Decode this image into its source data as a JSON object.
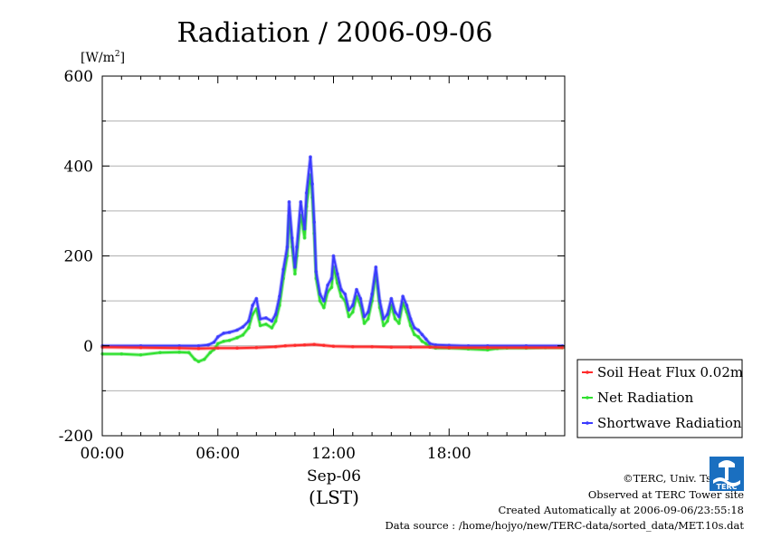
{
  "chart_data": {
    "type": "line",
    "title": "Radiation / 2006-09-06",
    "ylabel_unit_prefix": "[W/m",
    "ylabel_unit_sup": "2",
    "ylabel_unit_suffix": "]",
    "xlabel_date": "Sep-06",
    "xlabel_zone": "(LST)",
    "ylim": [
      -200,
      600
    ],
    "xlim": [
      0,
      24
    ],
    "y_ticks": [
      -200,
      0,
      200,
      400,
      600
    ],
    "y_tick_labels": [
      "-200",
      "0",
      "200",
      "400",
      "600"
    ],
    "x_ticks": [
      0,
      6,
      12,
      18
    ],
    "x_tick_labels": [
      "00:00",
      "06:00",
      "12:00",
      "18:00"
    ],
    "grid": true,
    "legend_position": "right-bottom",
    "series": [
      {
        "name": "Soil Heat Flux 0.02m",
        "color": "#ff2a2a",
        "points": [
          [
            0,
            -3
          ],
          [
            2,
            -4
          ],
          [
            4,
            -5
          ],
          [
            5,
            -6
          ],
          [
            6,
            -5
          ],
          [
            7,
            -5
          ],
          [
            8,
            -4
          ],
          [
            9,
            -2
          ],
          [
            9.5,
            0
          ],
          [
            10,
            1
          ],
          [
            10.5,
            2
          ],
          [
            11,
            3
          ],
          [
            11.5,
            1
          ],
          [
            12,
            -1
          ],
          [
            13,
            -2
          ],
          [
            14,
            -2
          ],
          [
            15,
            -3
          ],
          [
            16,
            -3
          ],
          [
            17,
            -3
          ],
          [
            18,
            -4
          ],
          [
            20,
            -4
          ],
          [
            22,
            -4
          ],
          [
            23.9,
            -4
          ]
        ]
      },
      {
        "name": "Net Radiation",
        "color": "#2ee02e",
        "points": [
          [
            0,
            -18
          ],
          [
            1,
            -18
          ],
          [
            2,
            -20
          ],
          [
            3,
            -15
          ],
          [
            4,
            -14
          ],
          [
            4.5,
            -15
          ],
          [
            4.8,
            -30
          ],
          [
            5,
            -35
          ],
          [
            5.3,
            -30
          ],
          [
            5.6,
            -15
          ],
          [
            5.8,
            -8
          ],
          [
            6,
            5
          ],
          [
            6.3,
            10
          ],
          [
            6.6,
            12
          ],
          [
            7,
            18
          ],
          [
            7.3,
            24
          ],
          [
            7.6,
            40
          ],
          [
            7.8,
            70
          ],
          [
            8,
            82
          ],
          [
            8.2,
            45
          ],
          [
            8.5,
            48
          ],
          [
            8.8,
            40
          ],
          [
            9,
            55
          ],
          [
            9.2,
            90
          ],
          [
            9.4,
            150
          ],
          [
            9.6,
            200
          ],
          [
            9.7,
            290
          ],
          [
            9.85,
            220
          ],
          [
            10,
            160
          ],
          [
            10.1,
            200
          ],
          [
            10.3,
            290
          ],
          [
            10.5,
            240
          ],
          [
            10.6,
            310
          ],
          [
            10.8,
            380
          ],
          [
            10.9,
            330
          ],
          [
            11,
            250
          ],
          [
            11.1,
            150
          ],
          [
            11.3,
            100
          ],
          [
            11.5,
            85
          ],
          [
            11.7,
            120
          ],
          [
            11.9,
            130
          ],
          [
            12,
            175
          ],
          [
            12.2,
            140
          ],
          [
            12.4,
            110
          ],
          [
            12.6,
            100
          ],
          [
            12.8,
            65
          ],
          [
            13,
            75
          ],
          [
            13.2,
            110
          ],
          [
            13.4,
            90
          ],
          [
            13.6,
            50
          ],
          [
            13.8,
            60
          ],
          [
            14,
            100
          ],
          [
            14.2,
            160
          ],
          [
            14.4,
            85
          ],
          [
            14.6,
            45
          ],
          [
            14.8,
            55
          ],
          [
            15,
            90
          ],
          [
            15.2,
            60
          ],
          [
            15.4,
            50
          ],
          [
            15.6,
            95
          ],
          [
            15.8,
            75
          ],
          [
            16,
            45
          ],
          [
            16.2,
            25
          ],
          [
            16.4,
            20
          ],
          [
            16.6,
            10
          ],
          [
            16.8,
            5
          ],
          [
            17,
            -2
          ],
          [
            17.3,
            -5
          ],
          [
            18,
            -5
          ],
          [
            19,
            -7
          ],
          [
            20,
            -9
          ],
          [
            20.5,
            -6
          ],
          [
            21,
            -5
          ],
          [
            22,
            -5
          ],
          [
            23,
            -4
          ],
          [
            23.9,
            -4
          ]
        ]
      },
      {
        "name": "Shortwave Radiation",
        "color": "#3a3aff",
        "points": [
          [
            0,
            0
          ],
          [
            2,
            0
          ],
          [
            4,
            0
          ],
          [
            5,
            0
          ],
          [
            5.5,
            2
          ],
          [
            5.8,
            8
          ],
          [
            6,
            20
          ],
          [
            6.3,
            28
          ],
          [
            6.6,
            30
          ],
          [
            7,
            35
          ],
          [
            7.3,
            42
          ],
          [
            7.6,
            55
          ],
          [
            7.8,
            90
          ],
          [
            8,
            105
          ],
          [
            8.2,
            60
          ],
          [
            8.5,
            62
          ],
          [
            8.8,
            55
          ],
          [
            9,
            70
          ],
          [
            9.2,
            110
          ],
          [
            9.4,
            170
          ],
          [
            9.6,
            220
          ],
          [
            9.7,
            320
          ],
          [
            9.85,
            240
          ],
          [
            10,
            175
          ],
          [
            10.1,
            220
          ],
          [
            10.3,
            320
          ],
          [
            10.5,
            260
          ],
          [
            10.6,
            340
          ],
          [
            10.8,
            420
          ],
          [
            10.9,
            360
          ],
          [
            11,
            275
          ],
          [
            11.1,
            165
          ],
          [
            11.3,
            115
          ],
          [
            11.5,
            100
          ],
          [
            11.7,
            135
          ],
          [
            11.9,
            150
          ],
          [
            12,
            200
          ],
          [
            12.2,
            160
          ],
          [
            12.4,
            125
          ],
          [
            12.6,
            115
          ],
          [
            12.8,
            80
          ],
          [
            13,
            90
          ],
          [
            13.2,
            125
          ],
          [
            13.4,
            105
          ],
          [
            13.6,
            65
          ],
          [
            13.8,
            75
          ],
          [
            14,
            115
          ],
          [
            14.2,
            175
          ],
          [
            14.4,
            100
          ],
          [
            14.6,
            60
          ],
          [
            14.8,
            70
          ],
          [
            15,
            105
          ],
          [
            15.2,
            75
          ],
          [
            15.4,
            65
          ],
          [
            15.6,
            110
          ],
          [
            15.8,
            90
          ],
          [
            16,
            60
          ],
          [
            16.2,
            40
          ],
          [
            16.4,
            35
          ],
          [
            16.6,
            25
          ],
          [
            16.8,
            15
          ],
          [
            17,
            5
          ],
          [
            17.3,
            2
          ],
          [
            18,
            1
          ],
          [
            19,
            0
          ],
          [
            20,
            0
          ],
          [
            22,
            0
          ],
          [
            23.9,
            0
          ]
        ]
      }
    ]
  },
  "footer": {
    "copyright": "©TERC, Univ. Tsukuba",
    "observed": "Observed at TERC Tower site",
    "created": "Created Automatically at 2006-09-06/23:55:18",
    "source": "Data source : /home/hojyo/new/TERC-data/sorted_data/MET.10s.dat"
  },
  "logo": {
    "text": "TERC",
    "color": "#1a6fc0"
  }
}
